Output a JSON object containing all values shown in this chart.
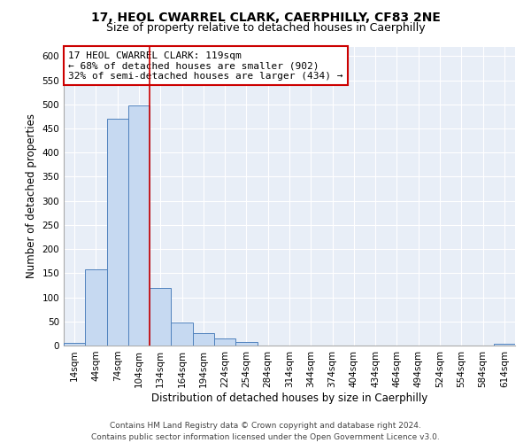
{
  "title": "17, HEOL CWARREL CLARK, CAERPHILLY, CF83 2NE",
  "subtitle": "Size of property relative to detached houses in Caerphilly",
  "xlabel": "Distribution of detached houses by size in Caerphilly",
  "ylabel": "Number of detached properties",
  "bar_labels": [
    "14sqm",
    "44sqm",
    "74sqm",
    "104sqm",
    "134sqm",
    "164sqm",
    "194sqm",
    "224sqm",
    "254sqm",
    "284sqm",
    "314sqm",
    "344sqm",
    "374sqm",
    "404sqm",
    "434sqm",
    "464sqm",
    "494sqm",
    "524sqm",
    "554sqm",
    "584sqm",
    "614sqm"
  ],
  "bar_values": [
    5,
    158,
    470,
    498,
    120,
    47,
    25,
    14,
    8,
    0,
    0,
    0,
    0,
    0,
    0,
    0,
    0,
    0,
    0,
    0,
    4
  ],
  "bar_color": "#c6d9f1",
  "bar_edge_color": "#4f81bd",
  "ylim": [
    0,
    620
  ],
  "yticks": [
    0,
    50,
    100,
    150,
    200,
    250,
    300,
    350,
    400,
    450,
    500,
    550,
    600
  ],
  "vline_color": "#cc0000",
  "vline_position": 3.5,
  "annotation_title": "17 HEOL CWARREL CLARK: 119sqm",
  "annotation_line1": "← 68% of detached houses are smaller (902)",
  "annotation_line2": "32% of semi-detached houses are larger (434) →",
  "annotation_box_facecolor": "#ffffff",
  "annotation_box_edgecolor": "#cc0000",
  "footer_line1": "Contains HM Land Registry data © Crown copyright and database right 2024.",
  "footer_line2": "Contains public sector information licensed under the Open Government Licence v3.0.",
  "background_color": "#ffffff",
  "plot_bg_color": "#e8eef7",
  "grid_color": "#ffffff",
  "title_fontsize": 10,
  "subtitle_fontsize": 9,
  "axis_label_fontsize": 8.5,
  "tick_fontsize": 7.5,
  "annotation_fontsize": 8,
  "footer_fontsize": 6.5
}
